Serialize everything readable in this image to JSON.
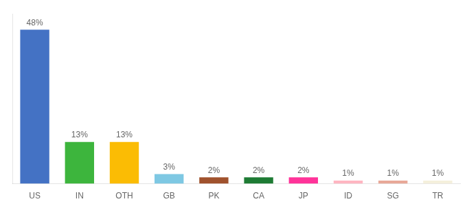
{
  "chart_data": {
    "type": "bar",
    "categories": [
      "US",
      "IN",
      "OTH",
      "GB",
      "PK",
      "CA",
      "JP",
      "ID",
      "SG",
      "TR"
    ],
    "values": [
      48,
      13,
      13,
      3,
      2,
      2,
      2,
      1,
      1,
      1
    ],
    "value_labels": [
      "48%",
      "13%",
      "13%",
      "3%",
      "2%",
      "2%",
      "2%",
      "1%",
      "1%",
      "1%"
    ],
    "colors": [
      "#4472C4",
      "#3DB53D",
      "#FBBC04",
      "#7EC8E3",
      "#A0522D",
      "#1E7B34",
      "#FF3399",
      "#FFB6C1",
      "#E8A898",
      "#F5F0DC"
    ],
    "ylim": [
      0,
      53
    ],
    "grid": false,
    "data_labels": true,
    "tick_labels": "x"
  }
}
